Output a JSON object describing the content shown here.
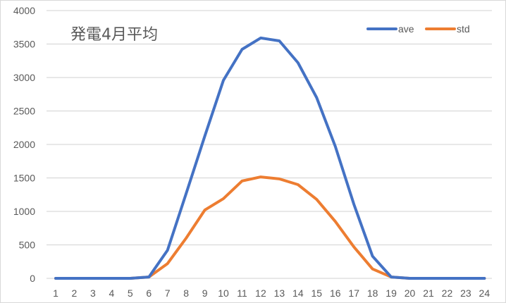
{
  "chart_data": {
    "type": "line",
    "title": "発電4月平均",
    "xlabel": "",
    "ylabel": "",
    "x": [
      1,
      2,
      3,
      4,
      5,
      6,
      7,
      8,
      9,
      10,
      11,
      12,
      13,
      14,
      15,
      16,
      17,
      18,
      19,
      20,
      21,
      22,
      23,
      24
    ],
    "ylim": [
      0,
      4000
    ],
    "yticks": [
      0,
      500,
      1000,
      1500,
      2000,
      2500,
      3000,
      3500,
      4000
    ],
    "grid": true,
    "legend_position": "top-right",
    "series": [
      {
        "name": "ave",
        "color": "#4472c4",
        "values": [
          0,
          0,
          0,
          0,
          0,
          20,
          420,
          1265,
          2125,
          2958,
          3421,
          3590,
          3547,
          3221,
          2700,
          1970,
          1105,
          330,
          20,
          0,
          0,
          0,
          0,
          0
        ]
      },
      {
        "name": "std",
        "color": "#ed7d31",
        "values": [
          0,
          0,
          0,
          0,
          0,
          20,
          220,
          600,
          1020,
          1190,
          1455,
          1515,
          1485,
          1400,
          1180,
          850,
          470,
          140,
          20,
          0,
          0,
          0,
          0,
          0
        ]
      }
    ]
  }
}
